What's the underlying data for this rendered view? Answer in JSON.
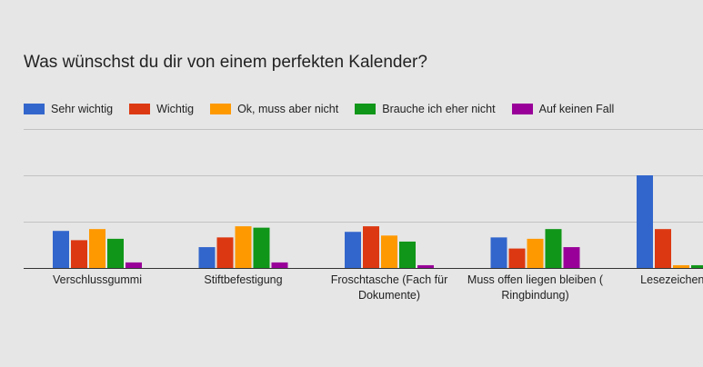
{
  "chart_data": {
    "type": "bar",
    "title": "Was wünschst du dir von einem perfekten Kalender?",
    "categories": [
      "Verschlussgummi",
      "Stiftbefestigung",
      "Froschtasche (Fach für Dokumente)",
      "Muss offen liegen bleiben ( Ringbindung)",
      "Lesezeichen-Bä"
    ],
    "category_lines": [
      [
        "Verschlussgummi"
      ],
      [
        "Stiftbefestigung"
      ],
      [
        "Froschtasche (Fach für",
        "Dokumente)"
      ],
      [
        "Muss offen liegen bleiben (",
        "Ringbindung)"
      ],
      [
        "Lesezeichen-Bä"
      ]
    ],
    "series": [
      {
        "name": "Sehr wichtig",
        "color": "#3366cc",
        "values": [
          8,
          4.5,
          7.8,
          6.6,
          20
        ]
      },
      {
        "name": "Wichtig",
        "color": "#dc3912",
        "values": [
          6,
          6.6,
          9,
          4.2,
          8.4
        ]
      },
      {
        "name": "Ok, muss aber nicht",
        "color": "#ff9900",
        "values": [
          8.4,
          9,
          7,
          6.3,
          0.6
        ]
      },
      {
        "name": "Brauche ich eher nicht",
        "color": "#109618",
        "values": [
          6.3,
          8.7,
          5.7,
          8.4,
          0.6
        ]
      },
      {
        "name": "Auf keinen Fall",
        "color": "#990099",
        "values": [
          1.2,
          1.2,
          0.6,
          4.5,
          0
        ]
      }
    ],
    "ylim": [
      0,
      30
    ],
    "grid": true,
    "legend_position": "top"
  }
}
